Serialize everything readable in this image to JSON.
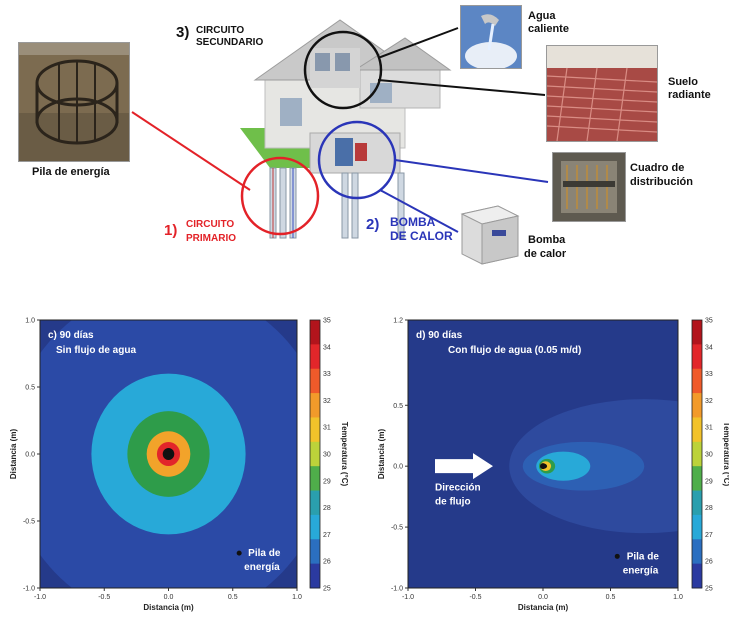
{
  "top": {
    "pile_label": "Pila de energía",
    "circuit1_num": "1)",
    "circuit1_line1": "CIRCUITO",
    "circuit1_line2": "PRIMARIO",
    "circuit2_num": "2)",
    "circuit2_line1": "BOMBA",
    "circuit2_line2": "DE CALOR",
    "circuit3_num": "3)",
    "circuit3_line1": "CIRCUITO",
    "circuit3_line2": "SECUNDARIO",
    "hot_water_line1": "Agua",
    "hot_water_line2": "caliente",
    "floor_line1": "Suelo",
    "floor_line2": "radiante",
    "panel_line1": "Cuadro de",
    "panel_line2": "distribución",
    "pump_line1": "Bomba",
    "pump_line2": "de calor"
  },
  "colors": {
    "red_circle": "#e32228",
    "blue_circle": "#2a35b8",
    "black_circle": "#111111",
    "plot_background": "#2a3a8c"
  },
  "chart_data": [
    {
      "type": "heatmap",
      "title_line1": "c) 90 días",
      "title_line2": "Sin flujo de agua",
      "xlabel": "Distancia (m)",
      "ylabel": "Distancia (m)",
      "xlim": [
        -1.0,
        1.0
      ],
      "ylim": [
        -1.0,
        1.0
      ],
      "x_ticks": [
        "-1.0",
        "-0.5",
        "0.0",
        "0.5",
        "1.0"
      ],
      "y_ticks": [
        "1.0",
        "0.5",
        "0.0",
        "-0.5",
        "-1.0"
      ],
      "source": [
        0.0,
        0.0
      ],
      "marker_label_line1": "Pila de",
      "marker_label_line2": "energía",
      "contours": [
        {
          "temp": 25.5,
          "rx": 1.25,
          "ry": 1.25,
          "cx": 0.0,
          "color": "#2b4aa6"
        },
        {
          "temp": 27.5,
          "rx": 0.6,
          "ry": 0.6,
          "cx": 0.0,
          "color": "#28a9d8"
        },
        {
          "temp": 29.5,
          "rx": 0.32,
          "ry": 0.32,
          "cx": 0.0,
          "color": "#2e9c4a"
        },
        {
          "temp": 31.5,
          "rx": 0.17,
          "ry": 0.17,
          "cx": 0.0,
          "color": "#f2a32a"
        },
        {
          "temp": 33.5,
          "rx": 0.09,
          "ry": 0.09,
          "cx": 0.0,
          "color": "#e2262a"
        },
        {
          "temp": 35.0,
          "rx": 0.045,
          "ry": 0.045,
          "cx": 0.0,
          "color": "#111111"
        }
      ],
      "colorbar": {
        "label": "Temperatura (°C)",
        "range": [
          25,
          35
        ],
        "ticks": [
          "35",
          "34",
          "33",
          "32",
          "31",
          "30",
          "29",
          "28",
          "27",
          "26",
          "25"
        ]
      }
    },
    {
      "type": "heatmap",
      "title_line1": "d) 90 días",
      "title_line2": "Con flujo de agua (0.05 m/d)",
      "xlabel": "Distancia (m)",
      "ylabel": "Distancia (m)",
      "xlim": [
        -1.0,
        1.0
      ],
      "ylim": [
        -1.0,
        1.2
      ],
      "x_ticks": [
        "-1.0",
        "-0.5",
        "0.0",
        "0.5",
        "1.0"
      ],
      "y_ticks": [
        "1.2",
        "0.5",
        "0.0",
        "-0.5",
        "-1.0"
      ],
      "source": [
        0.0,
        0.0
      ],
      "flow_label_line1": "Dirección",
      "flow_label_line2": "de flujo",
      "marker_label_line1": "Pila de",
      "marker_label_line2": "energía",
      "contours": [
        {
          "temp": 25.5,
          "rx": 1.0,
          "ry": 0.55,
          "cx": 0.75,
          "color": "#2e4a9e"
        },
        {
          "temp": 26.5,
          "rx": 0.45,
          "ry": 0.2,
          "cx": 0.3,
          "color": "#2d60b4"
        },
        {
          "temp": 27.5,
          "rx": 0.2,
          "ry": 0.12,
          "cx": 0.15,
          "color": "#28a9d8"
        },
        {
          "temp": 29.5,
          "rx": 0.06,
          "ry": 0.06,
          "cx": 0.03,
          "color": "#2e9c4a"
        },
        {
          "temp": 31.5,
          "rx": 0.04,
          "ry": 0.04,
          "cx": 0.02,
          "color": "#f2c22a"
        },
        {
          "temp": 35.0,
          "rx": 0.02,
          "ry": 0.02,
          "cx": 0.01,
          "color": "#111111"
        }
      ],
      "colorbar": {
        "label": "Temperatura (°C)",
        "range": [
          25,
          35
        ],
        "ticks": [
          "35",
          "34",
          "33",
          "32",
          "31",
          "30",
          "29",
          "28",
          "27",
          "26",
          "25"
        ]
      }
    }
  ]
}
